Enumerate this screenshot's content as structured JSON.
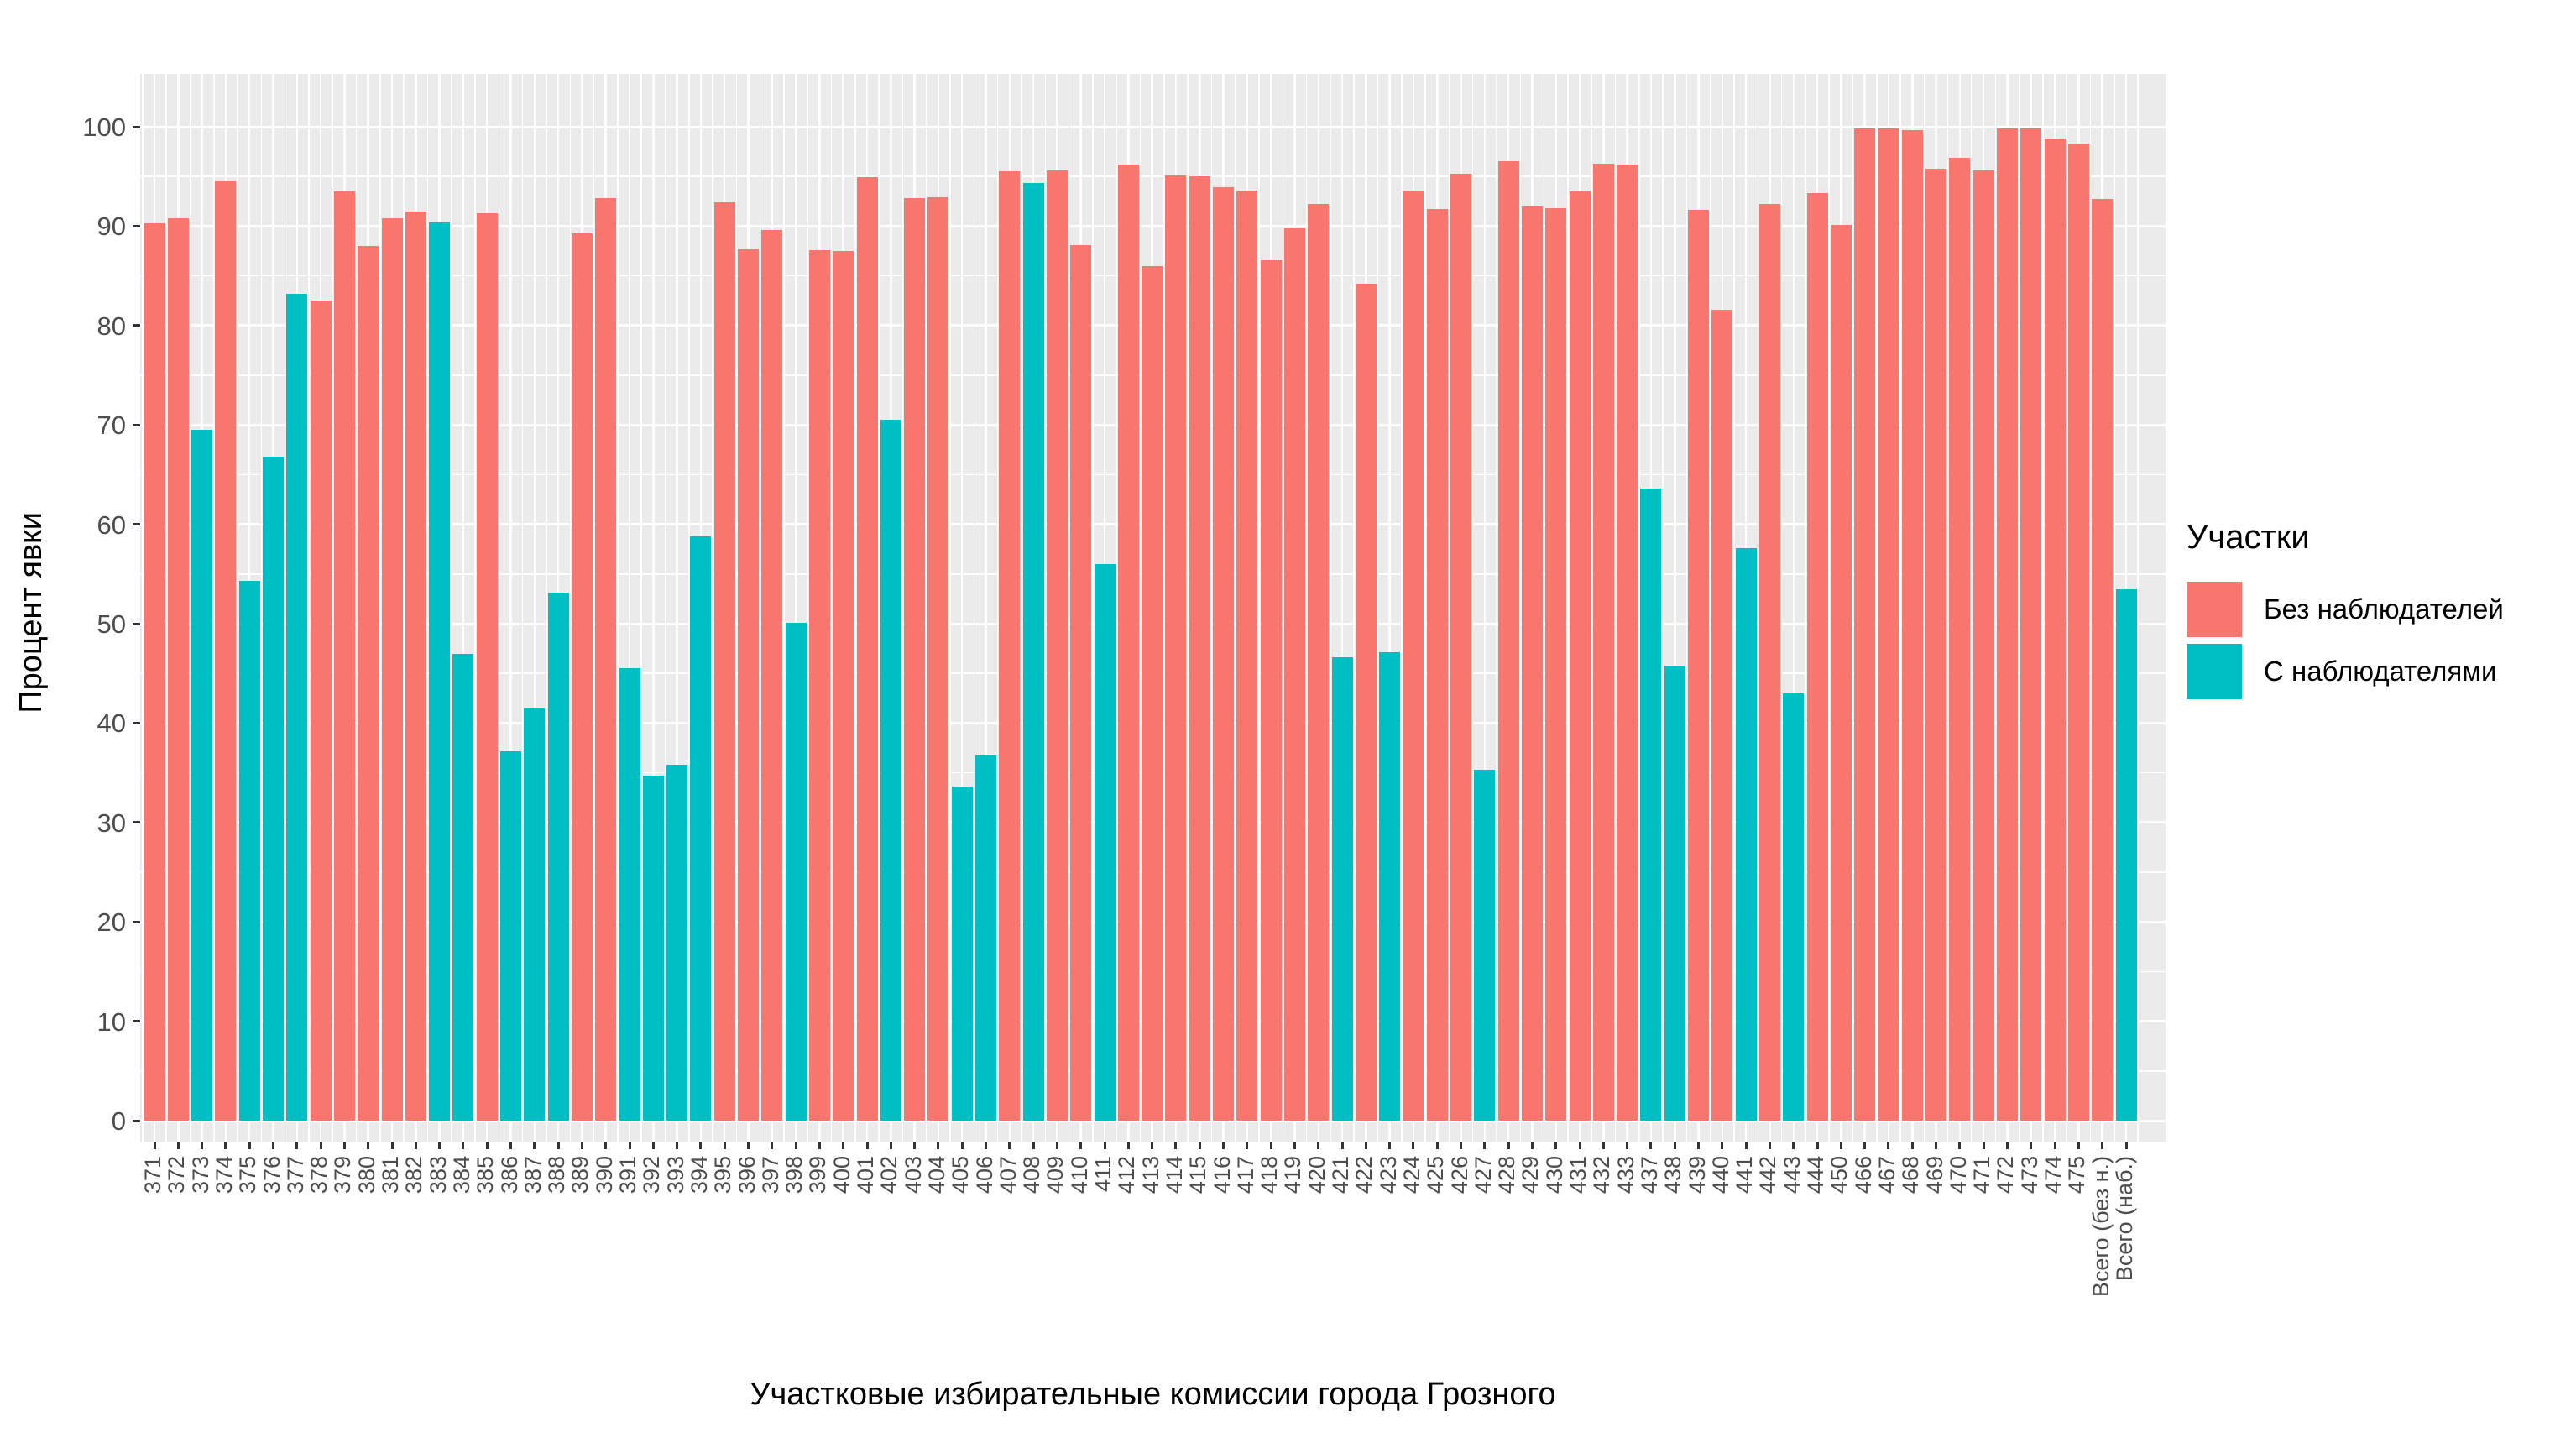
{
  "axes": {
    "y_label": "Процент явки",
    "x_label": "Участковые избирательные комиссии города Грозного",
    "y_ticks": [
      0,
      10,
      20,
      30,
      40,
      50,
      60,
      70,
      80,
      90,
      100
    ]
  },
  "legend": {
    "title": "Участки",
    "items": [
      {
        "label": "Без наблюдателей",
        "color": "#F8766D"
      },
      {
        "label": "С наблюдателями",
        "color": "#00BFC4"
      }
    ]
  },
  "chart_data": {
    "type": "bar",
    "title": "",
    "xlabel": "Участковые избирательные комиссии города Грозного",
    "ylabel": "Процент явки",
    "ylim": [
      0,
      100
    ],
    "grid": true,
    "legend_position": "right",
    "panel_background": "#EBEBEB",
    "gridline_color": "#FFFFFF",
    "series_names": [
      "Без наблюдателей",
      "С наблюдателями"
    ],
    "series_colors": [
      "#F8766D",
      "#00BFC4"
    ],
    "categories": [
      "371",
      "372",
      "373",
      "374",
      "375",
      "376",
      "377",
      "378",
      "379",
      "380",
      "381",
      "382",
      "383",
      "384",
      "385",
      "386",
      "387",
      "388",
      "389",
      "390",
      "391",
      "392",
      "393",
      "394",
      "395",
      "396",
      "397",
      "398",
      "399",
      "400",
      "401",
      "402",
      "403",
      "404",
      "405",
      "406",
      "407",
      "408",
      "409",
      "410",
      "411",
      "412",
      "413",
      "414",
      "415",
      "416",
      "417",
      "418",
      "419",
      "420",
      "421",
      "422",
      "423",
      "424",
      "425",
      "426",
      "427",
      "428",
      "429",
      "430",
      "431",
      "432",
      "433",
      "437",
      "438",
      "439",
      "440",
      "441",
      "442",
      "443",
      "444",
      "450",
      "466",
      "467",
      "468",
      "469",
      "470",
      "471",
      "472",
      "473",
      "474",
      "475",
      "Всего (без н.)",
      "Всего (наб.)"
    ],
    "group_index": [
      0,
      0,
      1,
      0,
      1,
      1,
      1,
      0,
      0,
      0,
      0,
      0,
      1,
      1,
      0,
      1,
      1,
      1,
      0,
      0,
      1,
      1,
      1,
      1,
      0,
      0,
      0,
      1,
      0,
      0,
      0,
      1,
      0,
      0,
      1,
      1,
      0,
      1,
      0,
      0,
      1,
      0,
      0,
      0,
      0,
      0,
      0,
      0,
      0,
      0,
      1,
      0,
      1,
      0,
      0,
      0,
      1,
      0,
      0,
      0,
      0,
      0,
      0,
      1,
      1,
      0,
      0,
      1,
      0,
      1,
      0,
      0,
      0,
      0,
      0,
      0,
      0,
      0,
      0,
      0,
      0,
      0,
      0,
      1
    ],
    "values": [
      90.3,
      90.8,
      69.5,
      94.5,
      54.3,
      66.8,
      83.2,
      82.5,
      93.5,
      88.0,
      90.8,
      91.5,
      90.4,
      47.0,
      91.3,
      37.2,
      41.5,
      53.1,
      89.3,
      92.8,
      45.5,
      34.7,
      35.8,
      58.8,
      92.4,
      87.7,
      89.6,
      50.1,
      87.6,
      87.5,
      94.9,
      70.5,
      92.8,
      92.9,
      33.6,
      36.7,
      95.5,
      94.3,
      95.6,
      88.1,
      56.0,
      96.2,
      86.0,
      95.1,
      95.0,
      93.9,
      93.6,
      86.6,
      89.8,
      92.2,
      46.6,
      84.2,
      47.1,
      93.6,
      91.7,
      95.3,
      35.3,
      96.5,
      92.0,
      91.8,
      93.5,
      96.3,
      96.2,
      63.6,
      45.8,
      91.6,
      81.6,
      57.6,
      92.2,
      43.0,
      93.3,
      90.1,
      99.8,
      99.8,
      99.7,
      95.8,
      96.9,
      95.6,
      99.8,
      99.8,
      98.8,
      98.3,
      92.7,
      53.5
    ]
  }
}
